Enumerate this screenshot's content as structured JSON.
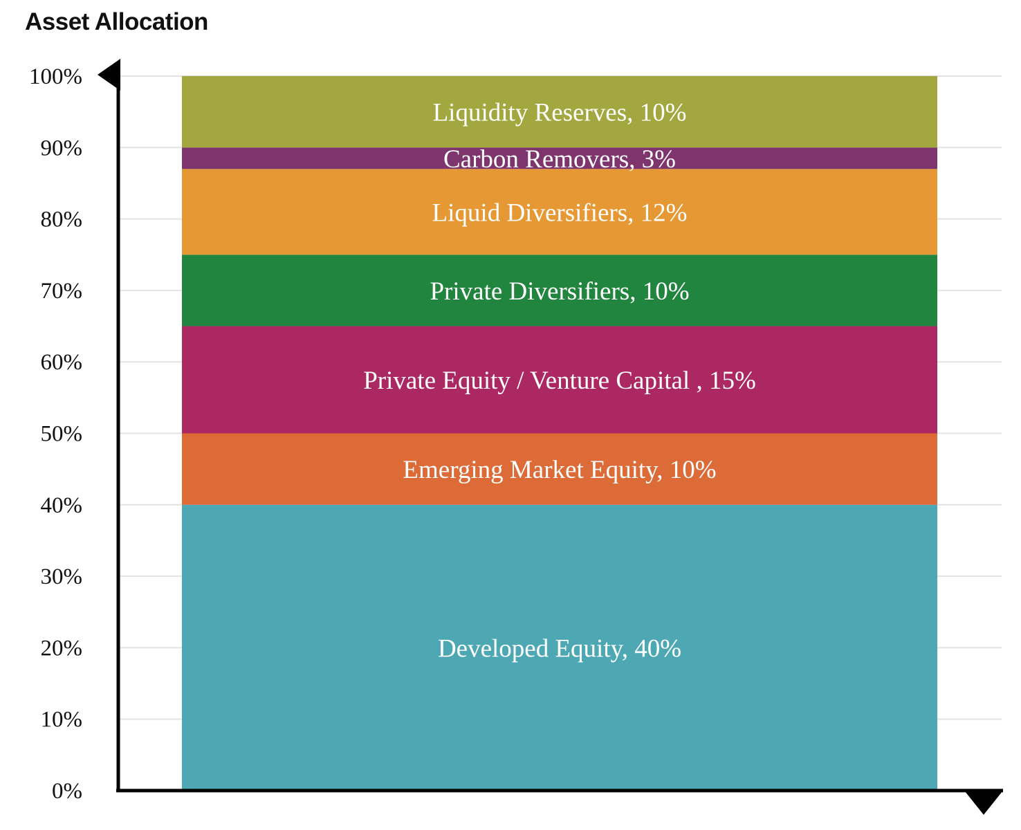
{
  "chart_data": {
    "type": "bar",
    "stacked": true,
    "title": "Asset Allocation",
    "xlabel": "",
    "ylabel": "",
    "ylim": [
      0,
      100
    ],
    "grid": true,
    "yticks": [
      "0%",
      "10%",
      "20%",
      "30%",
      "40%",
      "50%",
      "60%",
      "70%",
      "80%",
      "90%",
      "100%"
    ],
    "series": [
      {
        "label": "Developed Equity, 40%",
        "value": 40,
        "color": "#4ea8b4"
      },
      {
        "label": "Emerging Market Equity, 10%",
        "value": 10,
        "color": "#dc6b38"
      },
      {
        "label": "Private Equity / Venture Capital , 15%",
        "value": 15,
        "color": "#ac2863"
      },
      {
        "label": "Private Diversifiers, 10%",
        "value": 10,
        "color": "#22853f"
      },
      {
        "label": "Liquid Diversifiers, 12%",
        "value": 12,
        "color": "#e69834"
      },
      {
        "label": "Carbon Removers, 3%",
        "value": 3,
        "color": "#7e356d"
      },
      {
        "label": "Liquidity Reserves, 10%",
        "value": 10,
        "color": "#a2a83f"
      }
    ]
  }
}
